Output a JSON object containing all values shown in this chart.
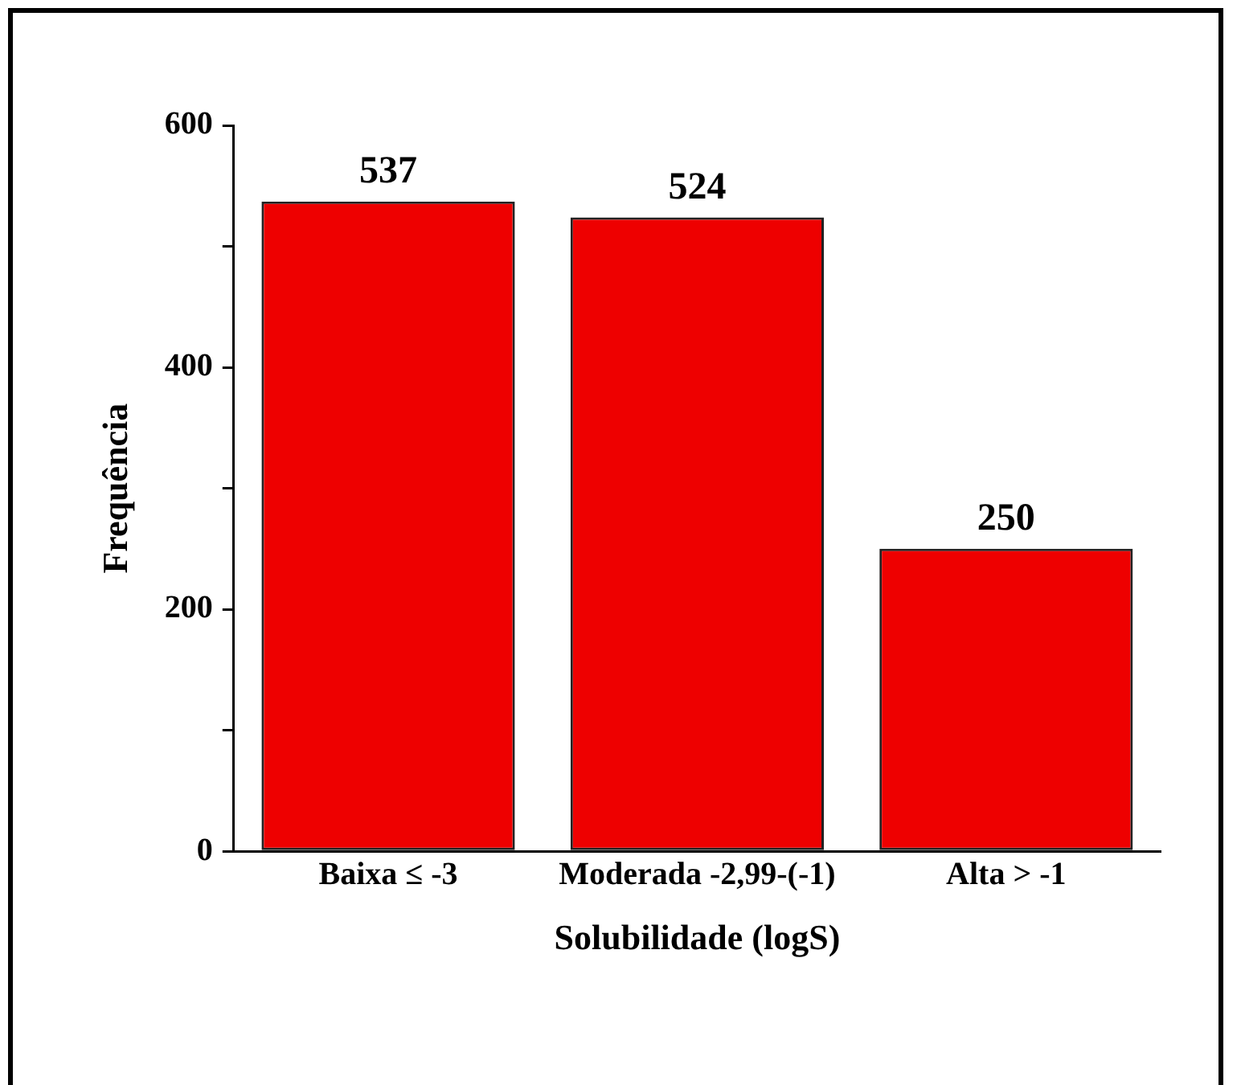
{
  "chart_data": {
    "type": "bar",
    "xlabel": "Solubilidade (logS)",
    "ylabel": "Frequência",
    "categories": [
      "Baixa ≤ -3",
      "Moderada -2,99-(-1)",
      "Alta > -1"
    ],
    "values": [
      537,
      524,
      250
    ],
    "color": "#ee0000",
    "ylim": [
      0,
      600
    ],
    "yticks": [
      0,
      {
        "value": 100,
        "label": null
      },
      200,
      {
        "value": 300,
        "label": null
      },
      400,
      {
        "value": 500,
        "label": null
      },
      600
    ],
    "grid": false,
    "legend": false,
    "data_labels": true
  }
}
